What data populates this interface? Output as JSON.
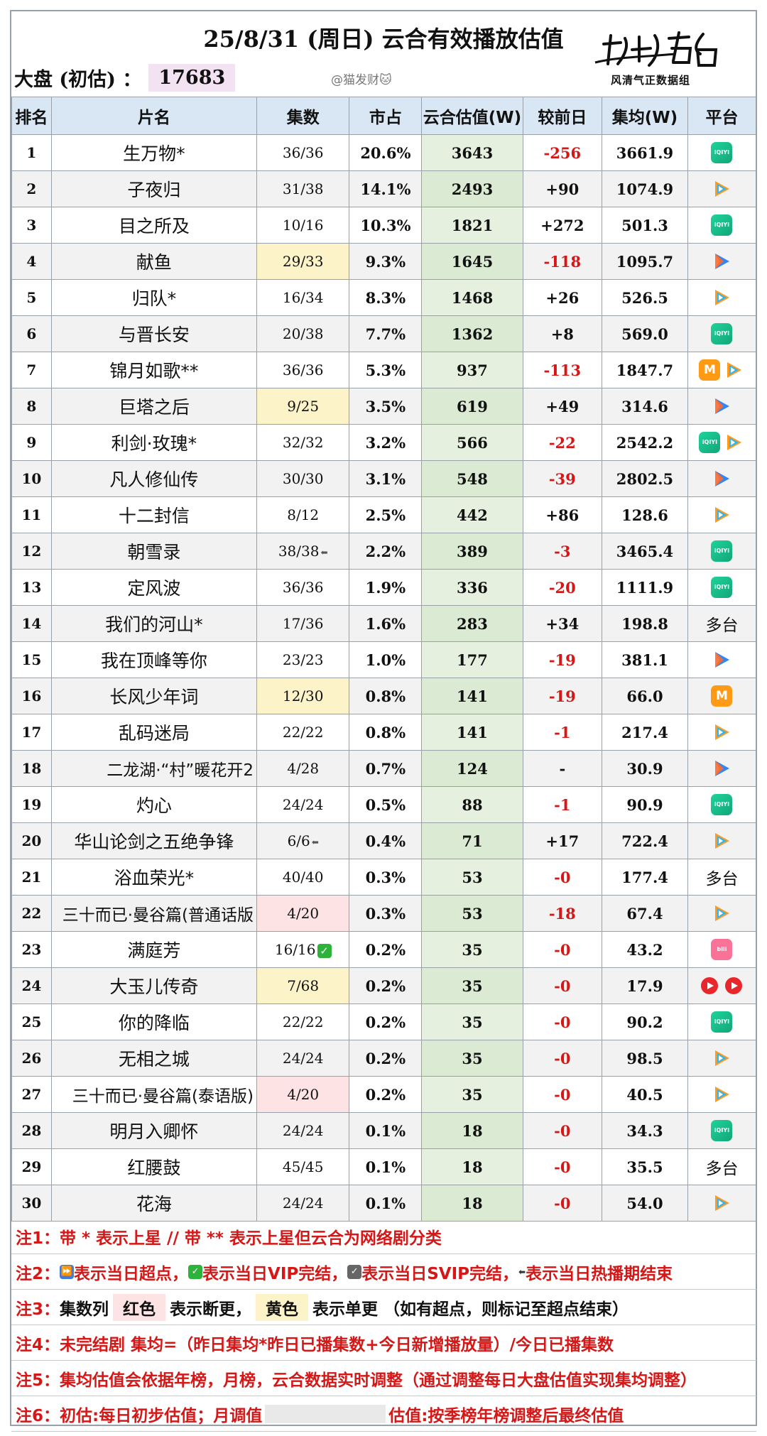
{
  "header": {
    "title": "25/8/31 (周日) 云合有效播放估值",
    "dapan_label": "大盘 (初估) ：",
    "dapan_value": "17683",
    "watermark": "@猫发财🐱",
    "logo_text": "榜上有名",
    "logo_sub": "风清气正数据组"
  },
  "columns": [
    "排名",
    "片名",
    "集数",
    "市占",
    "云合估值(W)",
    "较前日",
    "集均(W)",
    "平台"
  ],
  "rows": [
    {
      "rank": "1",
      "name": "生万物*",
      "eps": "36/36",
      "share": "20.6%",
      "val": "3643",
      "chg": "-256",
      "avg": "3661.9",
      "platform": [
        "iqiyi"
      ]
    },
    {
      "rank": "2",
      "name": "子夜归",
      "eps": "31/38",
      "share": "14.1%",
      "val": "2493",
      "chg": "+90",
      "avg": "1074.9",
      "platform": [
        "tencent"
      ]
    },
    {
      "rank": "3",
      "name": "目之所及",
      "eps": "10/16",
      "share": "10.3%",
      "val": "1821",
      "chg": "+272",
      "avg": "501.3",
      "platform": [
        "iqiyi"
      ]
    },
    {
      "rank": "4",
      "name": "献鱼",
      "eps": "29/33",
      "eps_color": "yellow",
      "share": "9.3%",
      "val": "1645",
      "chg": "-118",
      "avg": "1095.7",
      "platform": [
        "youku"
      ]
    },
    {
      "rank": "5",
      "name": "归队*",
      "eps": "16/34",
      "share": "8.3%",
      "val": "1468",
      "chg": "+26",
      "avg": "526.5",
      "platform": [
        "tencent"
      ]
    },
    {
      "rank": "6",
      "name": "与晋长安",
      "eps": "20/38",
      "share": "7.7%",
      "val": "1362",
      "chg": "+8",
      "avg": "569.0",
      "platform": [
        "iqiyi"
      ]
    },
    {
      "rank": "7",
      "name": "锦月如歌**",
      "eps": "36/36",
      "share": "5.3%",
      "val": "937",
      "chg": "-113",
      "avg": "1847.7",
      "platform": [
        "mango",
        "tencent"
      ]
    },
    {
      "rank": "8",
      "name": "巨塔之后",
      "eps": "9/25",
      "eps_color": "yellow",
      "share": "3.5%",
      "val": "619",
      "chg": "+49",
      "avg": "314.6",
      "platform": [
        "youku"
      ]
    },
    {
      "rank": "9",
      "name": "利剑·玫瑰*",
      "eps": "32/32",
      "share": "3.2%",
      "val": "566",
      "chg": "-22",
      "avg": "2542.2",
      "platform": [
        "iqiyi",
        "tencent"
      ]
    },
    {
      "rank": "10",
      "name": "凡人修仙传",
      "eps": "30/30",
      "share": "3.1%",
      "val": "548",
      "chg": "-39",
      "avg": "2802.5",
      "platform": [
        "youku"
      ]
    },
    {
      "rank": "11",
      "name": "十二封信",
      "eps": "8/12",
      "share": "2.5%",
      "val": "442",
      "chg": "+86",
      "avg": "128.6",
      "platform": [
        "tencent"
      ]
    },
    {
      "rank": "12",
      "name": "朝雪录",
      "eps": "38/38",
      "eps_mark": "END",
      "share": "2.2%",
      "val": "389",
      "chg": "-3",
      "avg": "3465.4",
      "platform": [
        "iqiyi"
      ]
    },
    {
      "rank": "13",
      "name": "定风波",
      "eps": "36/36",
      "share": "1.9%",
      "val": "336",
      "chg": "-20",
      "avg": "1111.9",
      "platform": [
        "iqiyi"
      ]
    },
    {
      "rank": "14",
      "name": "我们的河山*",
      "eps": "17/36",
      "share": "1.6%",
      "val": "283",
      "chg": "+34",
      "avg": "198.8",
      "platform_text": "多台"
    },
    {
      "rank": "15",
      "name": "我在顶峰等你",
      "eps": "23/23",
      "share": "1.0%",
      "val": "177",
      "chg": "-19",
      "avg": "381.1",
      "platform": [
        "youku"
      ]
    },
    {
      "rank": "16",
      "name": "长风少年词",
      "eps": "12/30",
      "eps_color": "yellow",
      "share": "0.8%",
      "val": "141",
      "chg": "-19",
      "avg": "66.0",
      "platform": [
        "mango"
      ]
    },
    {
      "rank": "17",
      "name": "乱码迷局",
      "eps": "22/22",
      "share": "0.8%",
      "val": "141",
      "chg": "-1",
      "avg": "217.4",
      "platform": [
        "tencent"
      ]
    },
    {
      "rank": "18",
      "name": "二龙湖·“村”暖花开2",
      "eps": "4/28",
      "share": "0.7%",
      "val": "124",
      "chg": "-",
      "avg": "30.9",
      "platform": [
        "youku"
      ]
    },
    {
      "rank": "19",
      "name": "灼心",
      "eps": "24/24",
      "share": "0.5%",
      "val": "88",
      "chg": "-1",
      "avg": "90.9",
      "platform": [
        "iqiyi"
      ]
    },
    {
      "rank": "20",
      "name": "华山论剑之五绝争锋",
      "eps": "6/6",
      "eps_mark": "END",
      "share": "0.4%",
      "val": "71",
      "chg": "+17",
      "avg": "722.4",
      "platform": [
        "tencent"
      ]
    },
    {
      "rank": "21",
      "name": "浴血荣光*",
      "eps": "40/40",
      "share": "0.3%",
      "val": "53",
      "chg": "-0",
      "avg": "177.4",
      "platform_text": "多台"
    },
    {
      "rank": "22",
      "name": "三十而已·曼谷篇(普通话版",
      "eps": "4/20",
      "eps_color": "pink",
      "share": "0.3%",
      "val": "53",
      "chg": "-18",
      "avg": "67.4",
      "platform": [
        "tencent"
      ]
    },
    {
      "rank": "23",
      "name": "满庭芳",
      "eps": "16/16",
      "eps_mark": "VIP",
      "share": "0.2%",
      "val": "35",
      "chg": "-0",
      "avg": "43.2",
      "platform": [
        "bilibili"
      ]
    },
    {
      "rank": "24",
      "name": "大玉儿传奇",
      "eps": "7/68",
      "eps_color": "yellow",
      "share": "0.2%",
      "val": "35",
      "chg": "-0",
      "avg": "17.9",
      "platform": [
        "red",
        "red2"
      ]
    },
    {
      "rank": "25",
      "name": "你的降临",
      "eps": "22/22",
      "share": "0.2%",
      "val": "35",
      "chg": "-0",
      "avg": "90.2",
      "platform": [
        "iqiyi"
      ]
    },
    {
      "rank": "26",
      "name": "无相之城",
      "eps": "24/24",
      "share": "0.2%",
      "val": "35",
      "chg": "-0",
      "avg": "98.5",
      "platform": [
        "tencent"
      ]
    },
    {
      "rank": "27",
      "name": "三十而已·曼谷篇(泰语版)",
      "eps": "4/20",
      "eps_color": "pink",
      "share": "0.2%",
      "val": "35",
      "chg": "-0",
      "avg": "40.5",
      "platform": [
        "tencent"
      ]
    },
    {
      "rank": "28",
      "name": "明月入卿怀",
      "eps": "24/24",
      "share": "0.1%",
      "val": "18",
      "chg": "-0",
      "avg": "34.3",
      "platform": [
        "iqiyi"
      ]
    },
    {
      "rank": "29",
      "name": "红腰鼓",
      "eps": "45/45",
      "share": "0.1%",
      "val": "18",
      "chg": "-0",
      "avg": "35.5",
      "platform_text": "多台"
    },
    {
      "rank": "30",
      "name": "花海",
      "eps": "24/24",
      "share": "0.1%",
      "val": "18",
      "chg": "-0",
      "avg": "54.0",
      "platform": [
        "tencent"
      ]
    }
  ],
  "notes": {
    "n1": "注1：带 * 表示上星 // 带 ** 表示上星但云合为网络剧分类",
    "n2_tag": "注2：",
    "n2_a": "表示当日超点，",
    "n2_b": "表示当日VIP完结，",
    "n2_c": "表示当日SVIP完结，",
    "n2_d": "表示当日热播期结束",
    "n3_tag": "注3：",
    "n3_a": "集数列",
    "n3_red": "红色",
    "n3_b": "表示断更，",
    "n3_yellow": "黄色",
    "n3_c": "表示单更 （如有超点，则标记至超点结束）",
    "n4": "注4：未完结剧 集均=（昨日集均*昨日已播集数+今日新增播放量）/今日已播集数",
    "n5": "注5：集均估值会依据年榜，月榜，云合数据实时调整（通过调整每日大盘估值实现集均调整）",
    "n6": "注6：初估:每日初步估值；月调值",
    "n6_b": "估值:按季榜年榜调整后最终估值"
  },
  "icons": {
    "iqiyi": "iqiyi-icon",
    "tencent": "tencent-video-icon",
    "youku": "youku-icon",
    "mango": "mango-tv-icon",
    "bilibili": "bilibili-icon",
    "red": "red-platform-icon"
  }
}
